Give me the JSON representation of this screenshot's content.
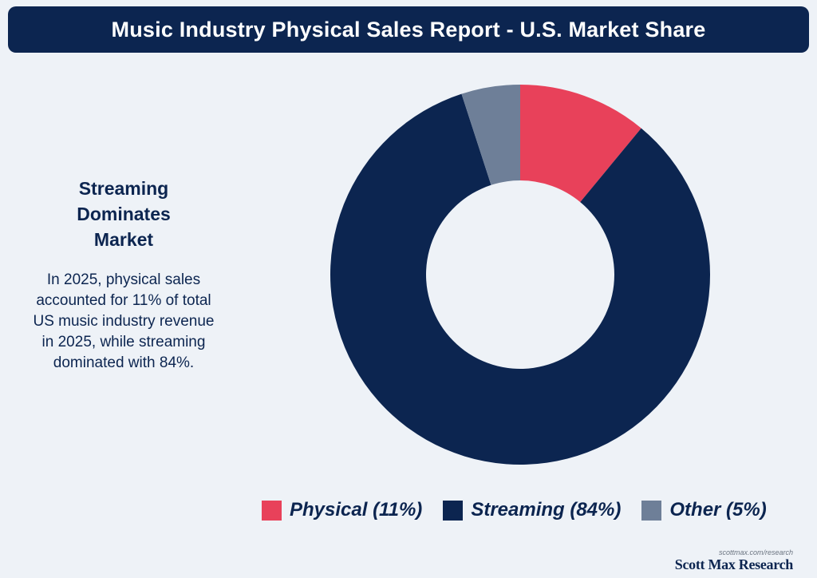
{
  "header": {
    "title": "Music Industry Physical Sales Report - U.S. Market Share"
  },
  "sidebar": {
    "heading": "Streaming Dominates Market",
    "body": "In 2025, physical sales accounted for 11% of total US music industry revenue in 2025, while streaming dominated with 84%."
  },
  "chart_data": {
    "type": "pie",
    "donut": true,
    "categories": [
      "Physical",
      "Streaming",
      "Other"
    ],
    "values": [
      11,
      84,
      5
    ],
    "colors": [
      "#e8415a",
      "#0c2550",
      "#6e7f98"
    ],
    "legend": [
      {
        "label": "Physical (11%)",
        "color": "#e8415a"
      },
      {
        "label": "Streaming (84%)",
        "color": "#0c2550"
      },
      {
        "label": "Other (5%)",
        "color": "#6e7f98"
      }
    ],
    "legend_position": "bottom"
  },
  "brand": {
    "url": "scottmax.com/research",
    "name": "Scott Max Research"
  }
}
